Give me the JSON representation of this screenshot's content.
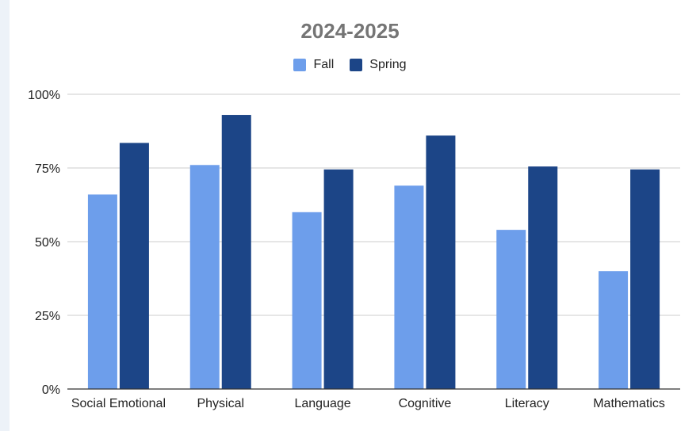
{
  "chart_data": {
    "type": "bar",
    "title": "2024-2025",
    "categories": [
      "Social Emotional",
      "Physical",
      "Language",
      "Cognitive",
      "Literacy",
      "Mathematics"
    ],
    "series": [
      {
        "name": "Fall",
        "color": "#6d9eeb",
        "values": [
          66,
          76,
          60,
          69,
          54,
          40
        ]
      },
      {
        "name": "Spring",
        "color": "#1c4587",
        "values": [
          83.5,
          93,
          74.5,
          86,
          75.5,
          74.5
        ]
      }
    ],
    "y_ticks": [
      "0%",
      "25%",
      "50%",
      "75%",
      "100%"
    ],
    "ylim": [
      0,
      100
    ],
    "legend_position": "top",
    "grid": true
  }
}
